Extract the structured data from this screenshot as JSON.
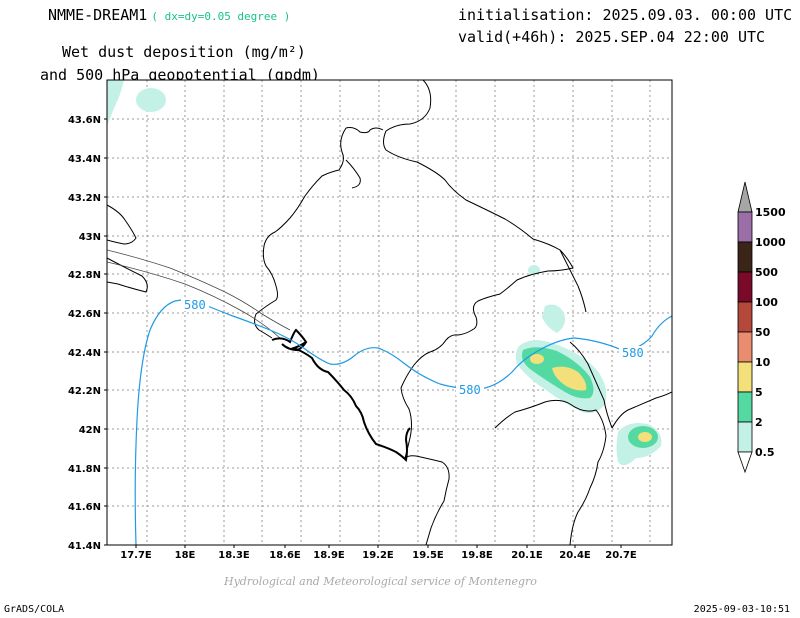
{
  "header": {
    "model_name": "NMME-DREAM1",
    "resolution": "( dx=dy=0.05 degree )",
    "initialisation": "initialisation: 2025.09.03. 00:00 UTC",
    "valid": "valid(+46h): 2025.SEP.04 22:00 UTC",
    "variable_line1": "Wet dust deposition (mg/m²)",
    "variable_line2": "and 500 hPa geopotential (gpdm)"
  },
  "map": {
    "lon_ticks": [
      "17.7E",
      "18E",
      "18.3E",
      "18.6E",
      "18.9E",
      "19.2E",
      "19.5E",
      "19.8E",
      "20.1E",
      "20.4E",
      "20.7E"
    ],
    "lat_ticks": [
      "43.6N",
      "43.4N",
      "43.2N",
      "43N",
      "42.8N",
      "42.6N",
      "42.4N",
      "42.2N",
      "42N",
      "41.8N",
      "41.6N",
      "41.4N"
    ],
    "contour_label": "580",
    "contour_color": "#1e9be6"
  },
  "legend": {
    "labels": [
      "1500",
      "1000",
      "500",
      "100",
      "50",
      "10",
      "5",
      "2",
      "0.5"
    ],
    "colors": [
      "#9b6ea8",
      "#3b2418",
      "#7a0a2a",
      "#b3483b",
      "#e98c70",
      "#f4e07a",
      "#55d9a3",
      "#c4f1e6"
    ],
    "over_color": "#a6a6a6",
    "under_color": "#ffffff"
  },
  "credit": "Hydrological and Meteorological service of Montenegro",
  "footer": {
    "software": "GrADS/COLA",
    "timestamp": "2025-09-03-10:51"
  }
}
